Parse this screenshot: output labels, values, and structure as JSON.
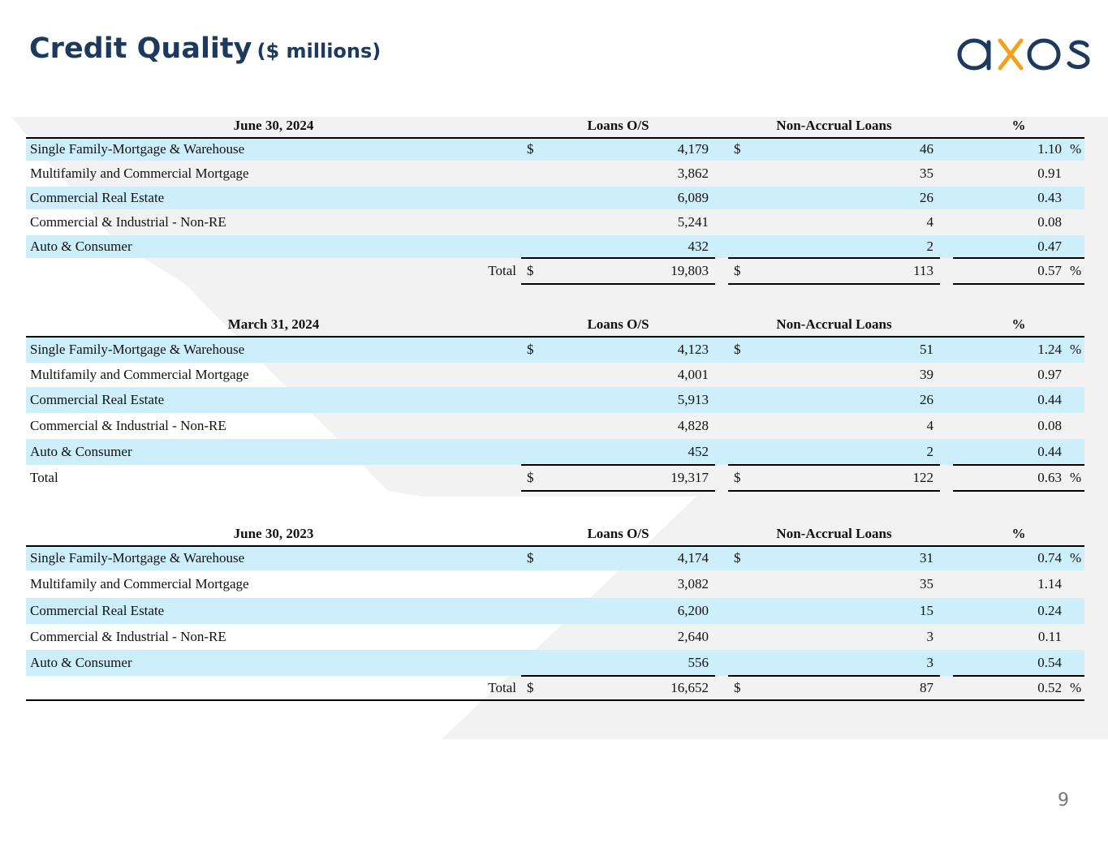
{
  "page": {
    "title": "Credit Quality",
    "subtitle": "($ millions)",
    "logo_text": "axos",
    "page_number": "9"
  },
  "colors": {
    "title": "#1c3a5e",
    "logo_navy": "#1c3a5e",
    "logo_orange": "#f4a01c",
    "row_shade": "#cdeefb",
    "background_chevron": "#f2f2f2"
  },
  "column_headers": {
    "loans": "Loans O/S",
    "nonaccrual": "Non-Accrual Loans",
    "pct": "%"
  },
  "tables": [
    {
      "period": "June 30, 2024",
      "rows": [
        {
          "label": "Single Family-Mortgage & Warehouse",
          "loans": "4,179",
          "nonaccrual": "46",
          "pct": "1.10",
          "dollar": "$",
          "pct_sign": "%"
        },
        {
          "label": "Multifamily and Commercial Mortgage",
          "loans": "3,862",
          "nonaccrual": "35",
          "pct": "0.91"
        },
        {
          "label": "Commercial Real Estate",
          "loans": "6,089",
          "nonaccrual": "26",
          "pct": "0.43"
        },
        {
          "label": "Commercial & Industrial - Non-RE",
          "loans": "5,241",
          "nonaccrual": "4",
          "pct": "0.08"
        },
        {
          "label": "Auto & Consumer",
          "loans": "432",
          "nonaccrual": "2",
          "pct": "0.47"
        }
      ],
      "total": {
        "label": "Total",
        "loans": "19,803",
        "nonaccrual": "113",
        "pct": "0.57",
        "dollar": "$",
        "pct_sign": "%"
      }
    },
    {
      "period": "March 31, 2024",
      "rows": [
        {
          "label": "Single Family-Mortgage & Warehouse",
          "loans": "4,123",
          "nonaccrual": "51",
          "pct": "1.24",
          "dollar": "$",
          "pct_sign": "%"
        },
        {
          "label": "Multifamily and Commercial Mortgage",
          "loans": "4,001",
          "nonaccrual": "39",
          "pct": "0.97"
        },
        {
          "label": "Commercial Real Estate",
          "loans": "5,913",
          "nonaccrual": "26",
          "pct": "0.44"
        },
        {
          "label": "Commercial & Industrial - Non-RE",
          "loans": "4,828",
          "nonaccrual": "4",
          "pct": "0.08"
        },
        {
          "label": "Auto & Consumer",
          "loans": "452",
          "nonaccrual": "2",
          "pct": "0.44"
        }
      ],
      "total": {
        "label": "Total",
        "loans": "19,317",
        "nonaccrual": "122",
        "pct": "0.63",
        "dollar": "$",
        "pct_sign": "%"
      }
    },
    {
      "period": "June 30, 2023",
      "rows": [
        {
          "label": "Single Family-Mortgage & Warehouse",
          "loans": "4,174",
          "nonaccrual": "31",
          "pct": "0.74",
          "dollar": "$",
          "pct_sign": "%"
        },
        {
          "label": "Multifamily and Commercial Mortgage",
          "loans": "3,082",
          "nonaccrual": "35",
          "pct": "1.14"
        },
        {
          "label": "Commercial Real Estate",
          "loans": "6,200",
          "nonaccrual": "15",
          "pct": "0.24"
        },
        {
          "label": "Commercial & Industrial - Non-RE",
          "loans": "2,640",
          "nonaccrual": "3",
          "pct": "0.11"
        },
        {
          "label": "Auto & Consumer",
          "loans": "556",
          "nonaccrual": "3",
          "pct": "0.54"
        }
      ],
      "total": {
        "label": "Total",
        "loans": "16,652",
        "nonaccrual": "87",
        "pct": "0.52",
        "dollar": "$",
        "pct_sign": "%"
      }
    }
  ]
}
